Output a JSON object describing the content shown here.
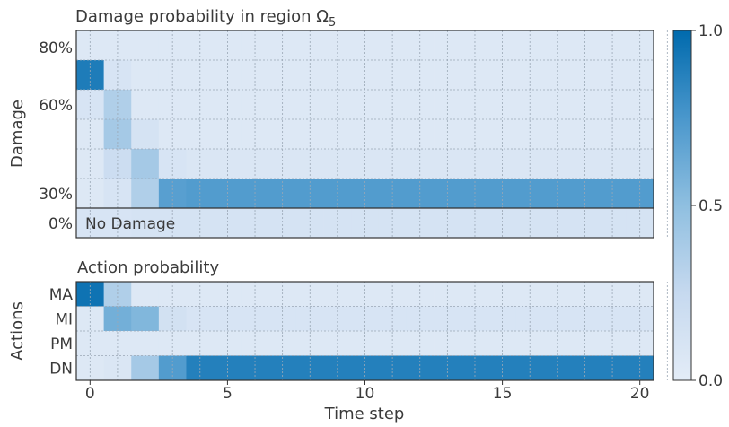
{
  "chart_data": [
    {
      "type": "heatmap",
      "title": "Damage probability in region Ω",
      "title_subscript": "5",
      "ylabel": "Damage",
      "y_tick_labels": [
        "80%",
        "60%",
        "30%",
        "0%"
      ],
      "annotation": "No Damage",
      "x": [
        0,
        1,
        2,
        3,
        4,
        5,
        6,
        7,
        8,
        9,
        10,
        11,
        12,
        13,
        14,
        15,
        16,
        17,
        18,
        19,
        20
      ],
      "rows": [
        {
          "name": "row1",
          "values": [
            0.05,
            0.05,
            0.05,
            0.05,
            0.05,
            0.05,
            0.05,
            0.05,
            0.05,
            0.05,
            0.05,
            0.05,
            0.05,
            0.05,
            0.05,
            0.05,
            0.05,
            0.05,
            0.05,
            0.05,
            0.05
          ]
        },
        {
          "name": "row2",
          "values": [
            0.9,
            0.1,
            0.05,
            0.05,
            0.05,
            0.05,
            0.05,
            0.05,
            0.05,
            0.05,
            0.05,
            0.05,
            0.05,
            0.05,
            0.05,
            0.05,
            0.05,
            0.05,
            0.05,
            0.05,
            0.05
          ]
        },
        {
          "name": "row3",
          "values": [
            0.1,
            0.35,
            0.05,
            0.05,
            0.05,
            0.05,
            0.05,
            0.05,
            0.05,
            0.05,
            0.05,
            0.05,
            0.05,
            0.05,
            0.05,
            0.05,
            0.05,
            0.05,
            0.05,
            0.05,
            0.05
          ]
        },
        {
          "name": "row4",
          "values": [
            0.05,
            0.4,
            0.12,
            0.05,
            0.05,
            0.05,
            0.05,
            0.05,
            0.05,
            0.05,
            0.05,
            0.05,
            0.05,
            0.05,
            0.05,
            0.05,
            0.05,
            0.05,
            0.05,
            0.05,
            0.05
          ]
        },
        {
          "name": "row5",
          "values": [
            0.05,
            0.2,
            0.4,
            0.1,
            0.08,
            0.08,
            0.08,
            0.08,
            0.08,
            0.08,
            0.08,
            0.08,
            0.08,
            0.08,
            0.08,
            0.08,
            0.08,
            0.08,
            0.08,
            0.08,
            0.08
          ]
        },
        {
          "name": "row6",
          "values": [
            0.05,
            0.1,
            0.35,
            0.7,
            0.72,
            0.72,
            0.72,
            0.72,
            0.72,
            0.72,
            0.72,
            0.72,
            0.72,
            0.72,
            0.72,
            0.72,
            0.72,
            0.72,
            0.72,
            0.72,
            0.72
          ]
        },
        {
          "name": "row7",
          "values": [
            0.1,
            0.1,
            0.12,
            0.12,
            0.12,
            0.12,
            0.12,
            0.12,
            0.12,
            0.12,
            0.12,
            0.12,
            0.12,
            0.12,
            0.12,
            0.12,
            0.12,
            0.12,
            0.12,
            0.12,
            0.12
          ]
        }
      ]
    },
    {
      "type": "heatmap",
      "title": "Action probability",
      "ylabel": "Actions",
      "xlabel": "Time step",
      "x_ticks": [
        0,
        5,
        10,
        15,
        20
      ],
      "x": [
        0,
        1,
        2,
        3,
        4,
        5,
        6,
        7,
        8,
        9,
        10,
        11,
        12,
        13,
        14,
        15,
        16,
        17,
        18,
        19,
        20
      ],
      "rows": [
        {
          "name": "MA",
          "values": [
            0.95,
            0.35,
            0.05,
            0.05,
            0.05,
            0.05,
            0.05,
            0.05,
            0.05,
            0.05,
            0.05,
            0.05,
            0.05,
            0.05,
            0.05,
            0.05,
            0.05,
            0.05,
            0.05,
            0.05,
            0.05
          ]
        },
        {
          "name": "MI",
          "values": [
            0.05,
            0.6,
            0.55,
            0.15,
            0.1,
            0.1,
            0.1,
            0.1,
            0.1,
            0.1,
            0.1,
            0.1,
            0.1,
            0.1,
            0.1,
            0.1,
            0.1,
            0.1,
            0.1,
            0.1,
            0.1
          ]
        },
        {
          "name": "PM",
          "values": [
            0.05,
            0.05,
            0.05,
            0.05,
            0.05,
            0.05,
            0.05,
            0.05,
            0.05,
            0.05,
            0.05,
            0.05,
            0.05,
            0.05,
            0.05,
            0.05,
            0.05,
            0.05,
            0.05,
            0.05,
            0.05
          ]
        },
        {
          "name": "DN",
          "values": [
            0.05,
            0.08,
            0.4,
            0.72,
            0.88,
            0.88,
            0.88,
            0.88,
            0.88,
            0.88,
            0.88,
            0.88,
            0.88,
            0.88,
            0.88,
            0.88,
            0.88,
            0.88,
            0.88,
            0.88,
            0.88
          ]
        }
      ]
    }
  ],
  "colorbar": {
    "range": [
      0,
      1
    ],
    "ticks": [
      "0.0",
      "0.5",
      "1.0"
    ],
    "colors": [
      "#e3ecf7",
      "#c6d9ef",
      "#8fbfe0",
      "#4a97cc",
      "#006aad"
    ]
  },
  "grid": true
}
